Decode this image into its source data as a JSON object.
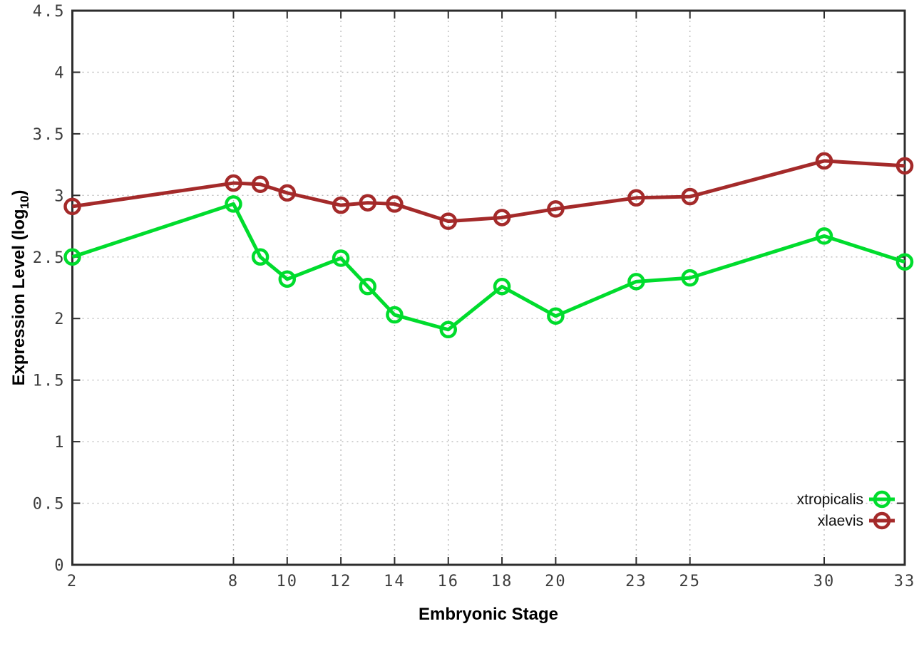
{
  "chart_data": {
    "type": "line",
    "title": "",
    "xlabel": "Embryonic Stage",
    "ylabel": "Expression Level (log10)",
    "ylabel_parts": {
      "main": "Expression Level (log",
      "sub": "10",
      "end": ")"
    },
    "xlim": [
      2,
      33
    ],
    "ylim": [
      0,
      4.5
    ],
    "x_tick_values": [
      2,
      8,
      10,
      12,
      14,
      16,
      18,
      20,
      23,
      25,
      30,
      33
    ],
    "x_tick_labels": [
      "2",
      "8",
      "10",
      "12",
      "14",
      "16",
      "18",
      "20",
      "23",
      "25",
      "30",
      "33"
    ],
    "y_tick_values": [
      0,
      0.5,
      1,
      1.5,
      2,
      2.5,
      3,
      3.5,
      4,
      4.5
    ],
    "y_tick_labels": [
      "0",
      "0.5",
      "1",
      "1.5",
      "2",
      "2.5",
      "3",
      "3.5",
      "4",
      "4.5"
    ],
    "grid": true,
    "legend_position": "inside-bottom-right",
    "x": [
      2,
      8,
      9,
      10,
      12,
      13,
      14,
      16,
      18,
      20,
      23,
      25,
      30,
      33
    ],
    "series": [
      {
        "name": "xtropicalis",
        "color": "#00dc2d",
        "marker": "open-circle",
        "values": [
          2.5,
          2.93,
          2.5,
          2.32,
          2.49,
          2.26,
          2.03,
          1.91,
          2.26,
          2.02,
          2.3,
          2.33,
          2.67,
          2.46
        ]
      },
      {
        "name": "xlaevis",
        "color": "#a42a2a",
        "marker": "open-circle",
        "values": [
          2.91,
          3.1,
          3.09,
          3.02,
          2.92,
          2.94,
          2.93,
          2.79,
          2.82,
          2.89,
          2.98,
          2.99,
          3.28,
          3.24
        ]
      }
    ],
    "style": {
      "axis_color": "#2d2d2d",
      "grid_color": "#bcbcbc",
      "tick_text_color": "#3d3d3d",
      "background": "#ffffff"
    }
  }
}
